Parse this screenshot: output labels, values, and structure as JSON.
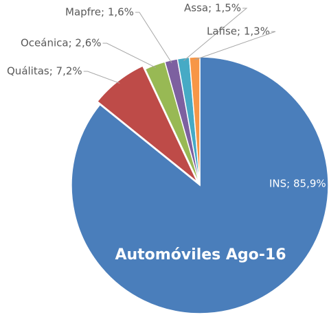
{
  "chart_data": {
    "type": "pie",
    "title": "Automóviles Ago-16",
    "values": [
      85.9,
      7.2,
      2.6,
      1.6,
      1.5,
      1.3
    ],
    "value_labels": [
      "INS; 85,9%",
      "Quálitas; 7,2%",
      "Oceánica; 2,6%",
      "Mapfre; 1,6%",
      "Assa; 1,5%",
      "Lafise; 1,3%"
    ],
    "colors": [
      "#4a7ebb",
      "#be4b48",
      "#98b954",
      "#7d60a0",
      "#46aac5",
      "#f79646"
    ]
  }
}
